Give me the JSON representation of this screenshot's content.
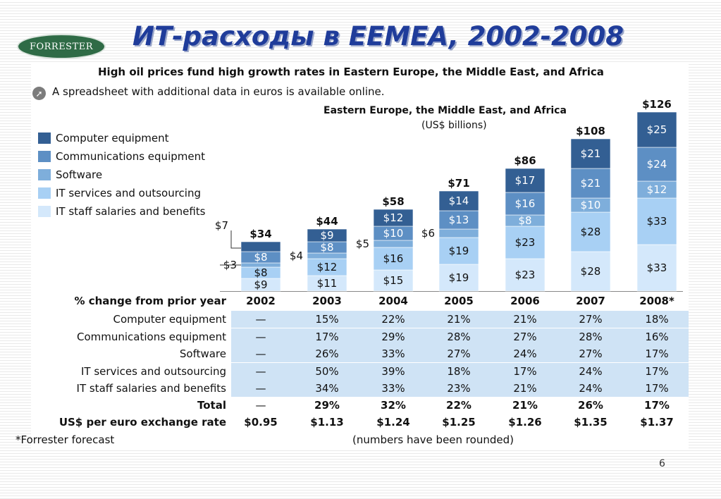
{
  "slide": {
    "logo_text": "FORRESTER",
    "title": "ИТ-расходы в EEMEA, 2002-2008",
    "page_number": "6"
  },
  "panel": {
    "title": "High oil prices fund high growth rates in Eastern Europe, the Middle East, and Africa",
    "note_icon": "link-arrow-icon",
    "note": "A spreadsheet with additional data in euros is available online."
  },
  "chart_data": {
    "type": "bar",
    "stacked": true,
    "title": "Eastern Europe, the Middle East, and Africa",
    "subtitle": "(US$ billions)",
    "categories": [
      "2002",
      "2003",
      "2004",
      "2005",
      "2006",
      "2007",
      "2008*"
    ],
    "totals": [
      "$34",
      "$44",
      "$58",
      "$71",
      "$86",
      "$108",
      "$126"
    ],
    "series": [
      {
        "name": "IT staff salaries and benefits",
        "color": "#d4e8fb",
        "values": [
          9,
          11,
          15,
          19,
          23,
          28,
          33
        ],
        "labels": [
          "$9",
          "$11",
          "$15",
          "$19",
          "$23",
          "$28",
          "$33"
        ]
      },
      {
        "name": "IT services and outsourcing",
        "color": "#a8d0f4",
        "values": [
          8,
          12,
          16,
          19,
          23,
          28,
          33
        ],
        "labels": [
          "$8",
          "$12",
          "$16",
          "$19",
          "$23",
          "$28",
          "$33"
        ]
      },
      {
        "name": "Software",
        "color": "#7eaedb",
        "values": [
          3,
          4,
          5,
          6,
          8,
          10,
          12
        ],
        "labels": [
          "$3",
          "$4",
          "$5",
          "$6",
          "$8",
          "$10",
          "$12"
        ]
      },
      {
        "name": "Communications equipment",
        "color": "#5d8fc4",
        "values": [
          8,
          8,
          10,
          13,
          16,
          21,
          24
        ],
        "labels": [
          "$8",
          "$8",
          "$10",
          "$13",
          "$16",
          "$21",
          "$24"
        ]
      },
      {
        "name": "Computer equipment",
        "color": "#335f93",
        "values": [
          7,
          9,
          12,
          14,
          17,
          21,
          25
        ],
        "labels": [
          "$7",
          "$9",
          "$12",
          "$14",
          "$17",
          "$21",
          "$25"
        ]
      }
    ],
    "legend_order": [
      "Computer equipment",
      "Communications equipment",
      "Software",
      "IT services and outsourcing",
      "IT staff salaries and benefits"
    ],
    "legend_placement": "left",
    "grid": false
  },
  "table": {
    "header_label": "% change from prior year",
    "years": [
      "2002",
      "2003",
      "2004",
      "2005",
      "2006",
      "2007",
      "2008*"
    ],
    "rows": [
      {
        "label": "Computer equipment",
        "values": [
          "—",
          "15%",
          "22%",
          "21%",
          "21%",
          "27%",
          "18%"
        ]
      },
      {
        "label": "Communications equipment",
        "values": [
          "—",
          "17%",
          "29%",
          "28%",
          "27%",
          "28%",
          "16%"
        ]
      },
      {
        "label": "Software",
        "values": [
          "—",
          "26%",
          "33%",
          "27%",
          "24%",
          "27%",
          "17%"
        ]
      },
      {
        "label": "IT services and outsourcing",
        "values": [
          "—",
          "50%",
          "39%",
          "18%",
          "17%",
          "24%",
          "17%"
        ]
      },
      {
        "label": "IT staff salaries and benefits",
        "values": [
          "—",
          "34%",
          "33%",
          "23%",
          "21%",
          "24%",
          "17%"
        ]
      }
    ],
    "total": {
      "label": "Total",
      "values": [
        "—",
        "29%",
        "32%",
        "22%",
        "21%",
        "26%",
        "17%"
      ]
    },
    "exchange": {
      "label": "US$ per euro exchange rate",
      "values": [
        "$0.95",
        "$1.13",
        "$1.24",
        "$1.25",
        "$1.26",
        "$1.35",
        "$1.37"
      ]
    }
  },
  "footnotes": {
    "forecast": "*Forrester forecast",
    "rounded": "(numbers have been rounded)"
  }
}
